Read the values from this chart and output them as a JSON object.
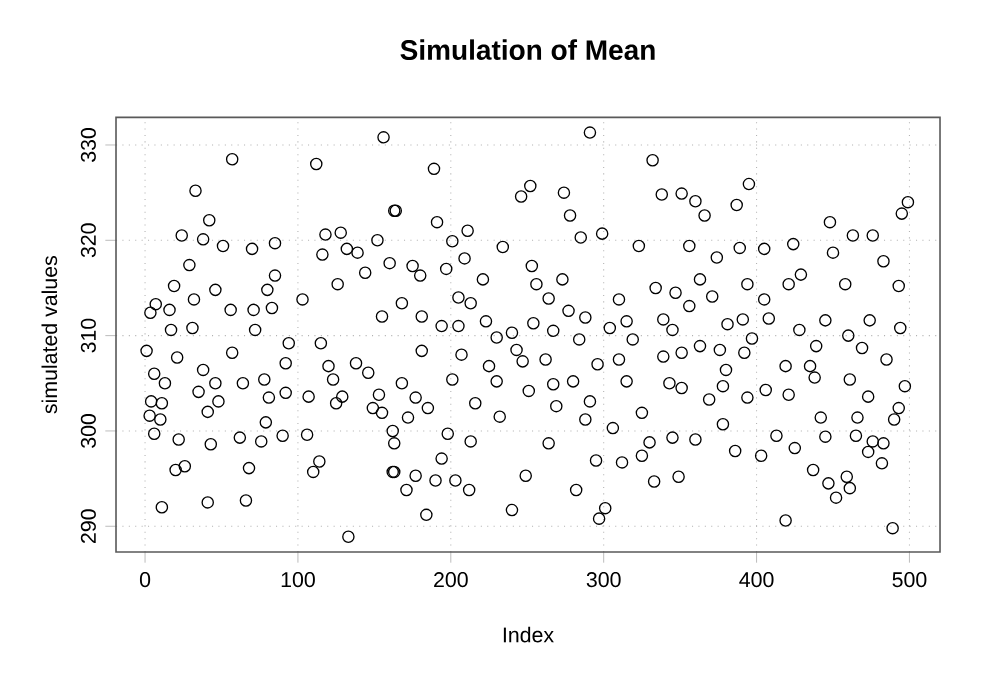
{
  "chart_data": {
    "type": "scatter",
    "title": "Simulation of Mean",
    "xlabel": "Index",
    "ylabel": "simulated values",
    "xlim": [
      -19,
      520
    ],
    "ylim": [
      287.3,
      332.9
    ],
    "xticks": [
      0,
      100,
      200,
      300,
      400,
      500
    ],
    "yticks": [
      290,
      300,
      310,
      320,
      330
    ],
    "grid": true,
    "marker": "circle",
    "color": "#000000",
    "x": [
      156,
      57,
      112,
      33,
      42,
      24,
      38,
      51,
      70,
      85,
      29,
      118,
      128,
      132,
      116,
      139,
      152,
      163,
      19,
      7,
      3.5,
      16,
      32,
      46,
      80,
      85,
      56,
      71,
      83,
      103,
      126,
      144,
      160,
      17,
      31,
      72,
      94,
      115,
      155,
      1,
      21,
      38,
      57,
      92,
      120,
      138,
      146,
      6,
      13,
      46,
      64,
      78,
      92,
      107,
      123,
      4,
      11,
      35,
      48,
      81,
      129,
      153,
      155,
      3,
      10,
      41,
      79,
      125,
      149,
      6,
      22,
      43,
      62,
      76,
      90,
      106,
      162,
      20,
      26,
      68,
      114,
      110,
      163,
      11,
      41,
      66,
      133,
      291,
      189,
      332,
      246,
      252,
      274,
      338,
      164,
      278,
      191,
      211,
      201,
      234,
      285,
      299,
      323,
      209,
      253,
      175,
      197,
      273,
      221,
      180,
      256,
      334,
      168,
      205,
      213,
      264,
      310,
      181,
      223,
      254,
      277,
      288,
      315,
      339,
      194,
      205,
      240,
      267,
      304,
      230,
      284,
      319,
      181,
      207,
      243,
      262,
      247,
      310,
      339,
      225,
      296,
      168,
      201,
      230,
      267,
      280,
      315,
      343,
      177,
      216,
      251,
      269,
      291,
      325,
      185,
      232,
      172,
      288,
      306,
      198,
      264,
      330,
      163,
      213,
      194,
      295,
      312,
      325,
      162,
      177,
      190,
      203,
      249,
      212,
      171,
      282,
      333,
      184,
      240,
      297,
      301,
      395,
      360,
      366,
      351,
      387,
      499,
      495,
      448,
      356,
      389,
      405,
      424,
      463,
      476,
      483,
      374,
      450,
      363,
      394,
      429,
      458,
      493,
      347,
      371,
      405,
      421,
      356,
      391,
      408,
      445,
      474,
      494,
      381,
      345,
      428,
      460,
      363,
      376,
      397,
      351,
      439,
      469,
      485,
      392,
      419,
      380,
      435,
      351,
      378,
      406,
      438,
      461,
      497,
      369,
      394,
      421,
      473,
      493,
      490,
      378,
      413,
      442,
      466,
      345,
      360,
      386,
      403,
      425,
      445,
      465,
      476,
      483,
      473,
      482,
      349,
      437,
      447,
      459,
      452,
      461,
      419,
      489
    ],
    "values": [
      330.8,
      328.5,
      328,
      325.2,
      322.1,
      320.5,
      320.1,
      319.4,
      319.1,
      319.7,
      317.4,
      320.6,
      320.8,
      319.1,
      318.5,
      318.7,
      320,
      323.1,
      315.2,
      313.3,
      312.4,
      312.7,
      313.8,
      314.8,
      314.8,
      316.3,
      312.7,
      312.7,
      312.9,
      313.8,
      315.4,
      316.6,
      317.6,
      310.6,
      310.8,
      310.6,
      309.2,
      309.2,
      312,
      308.4,
      307.7,
      306.4,
      308.2,
      307.1,
      306.8,
      307.1,
      306.1,
      306,
      305,
      305,
      305,
      305.4,
      304,
      303.6,
      305.4,
      303.1,
      302.9,
      304.1,
      303.1,
      303.5,
      303.6,
      303.8,
      301.9,
      301.6,
      301.2,
      302,
      300.9,
      302.9,
      302.4,
      299.7,
      299.1,
      298.6,
      299.3,
      298.9,
      299.5,
      299.6,
      300,
      295.9,
      296.3,
      296.1,
      296.8,
      295.7,
      295.7,
      292,
      292.5,
      292.7,
      288.9,
      331.3,
      327.5,
      328.4,
      324.6,
      325.7,
      325,
      324.8,
      323.1,
      322.6,
      321.9,
      321,
      319.9,
      319.3,
      320.3,
      320.7,
      319.4,
      318.1,
      317.3,
      317.3,
      317,
      315.9,
      315.9,
      316.3,
      315.4,
      315,
      313.4,
      314,
      313.4,
      313.9,
      313.8,
      312,
      311.5,
      311.3,
      312.6,
      311.9,
      311.5,
      311.7,
      311,
      311,
      310.3,
      310.5,
      310.8,
      309.8,
      309.6,
      309.6,
      308.4,
      308,
      308.5,
      307.5,
      307.3,
      307.5,
      307.8,
      306.8,
      307,
      305,
      305.4,
      305.2,
      304.9,
      305.2,
      305.2,
      305,
      303.5,
      302.9,
      304.2,
      302.6,
      303.1,
      301.9,
      302.4,
      301.5,
      301.4,
      301.2,
      300.3,
      299.7,
      298.7,
      298.8,
      298.7,
      298.9,
      297.1,
      296.9,
      296.7,
      297.4,
      295.7,
      295.3,
      294.8,
      294.8,
      295.3,
      293.8,
      293.8,
      293.8,
      294.7,
      291.2,
      291.7,
      290.8,
      291.9,
      325.9,
      324.1,
      322.6,
      324.9,
      323.7,
      324,
      322.8,
      321.9,
      319.4,
      319.2,
      319.1,
      319.6,
      320.5,
      320.5,
      317.8,
      318.2,
      318.7,
      315.9,
      315.4,
      316.4,
      315.4,
      315.2,
      314.5,
      314.1,
      313.8,
      315.4,
      313.1,
      311.7,
      311.8,
      311.6,
      311.6,
      310.8,
      311.2,
      310.6,
      310.6,
      310,
      308.9,
      308.5,
      309.7,
      308.2,
      308.9,
      308.7,
      307.5,
      308.2,
      306.8,
      306.4,
      306.8,
      304.5,
      304.7,
      304.3,
      305.6,
      305.4,
      304.7,
      303.3,
      303.5,
      303.8,
      303.6,
      302.4,
      301.2,
      300.7,
      299.5,
      301.4,
      301.4,
      299.3,
      299.1,
      297.9,
      297.4,
      298.2,
      299.4,
      299.5,
      298.9,
      298.7,
      297.8,
      296.6,
      295.2,
      295.9,
      294.5,
      295.2,
      293,
      294,
      290.6,
      289.8
    ]
  }
}
